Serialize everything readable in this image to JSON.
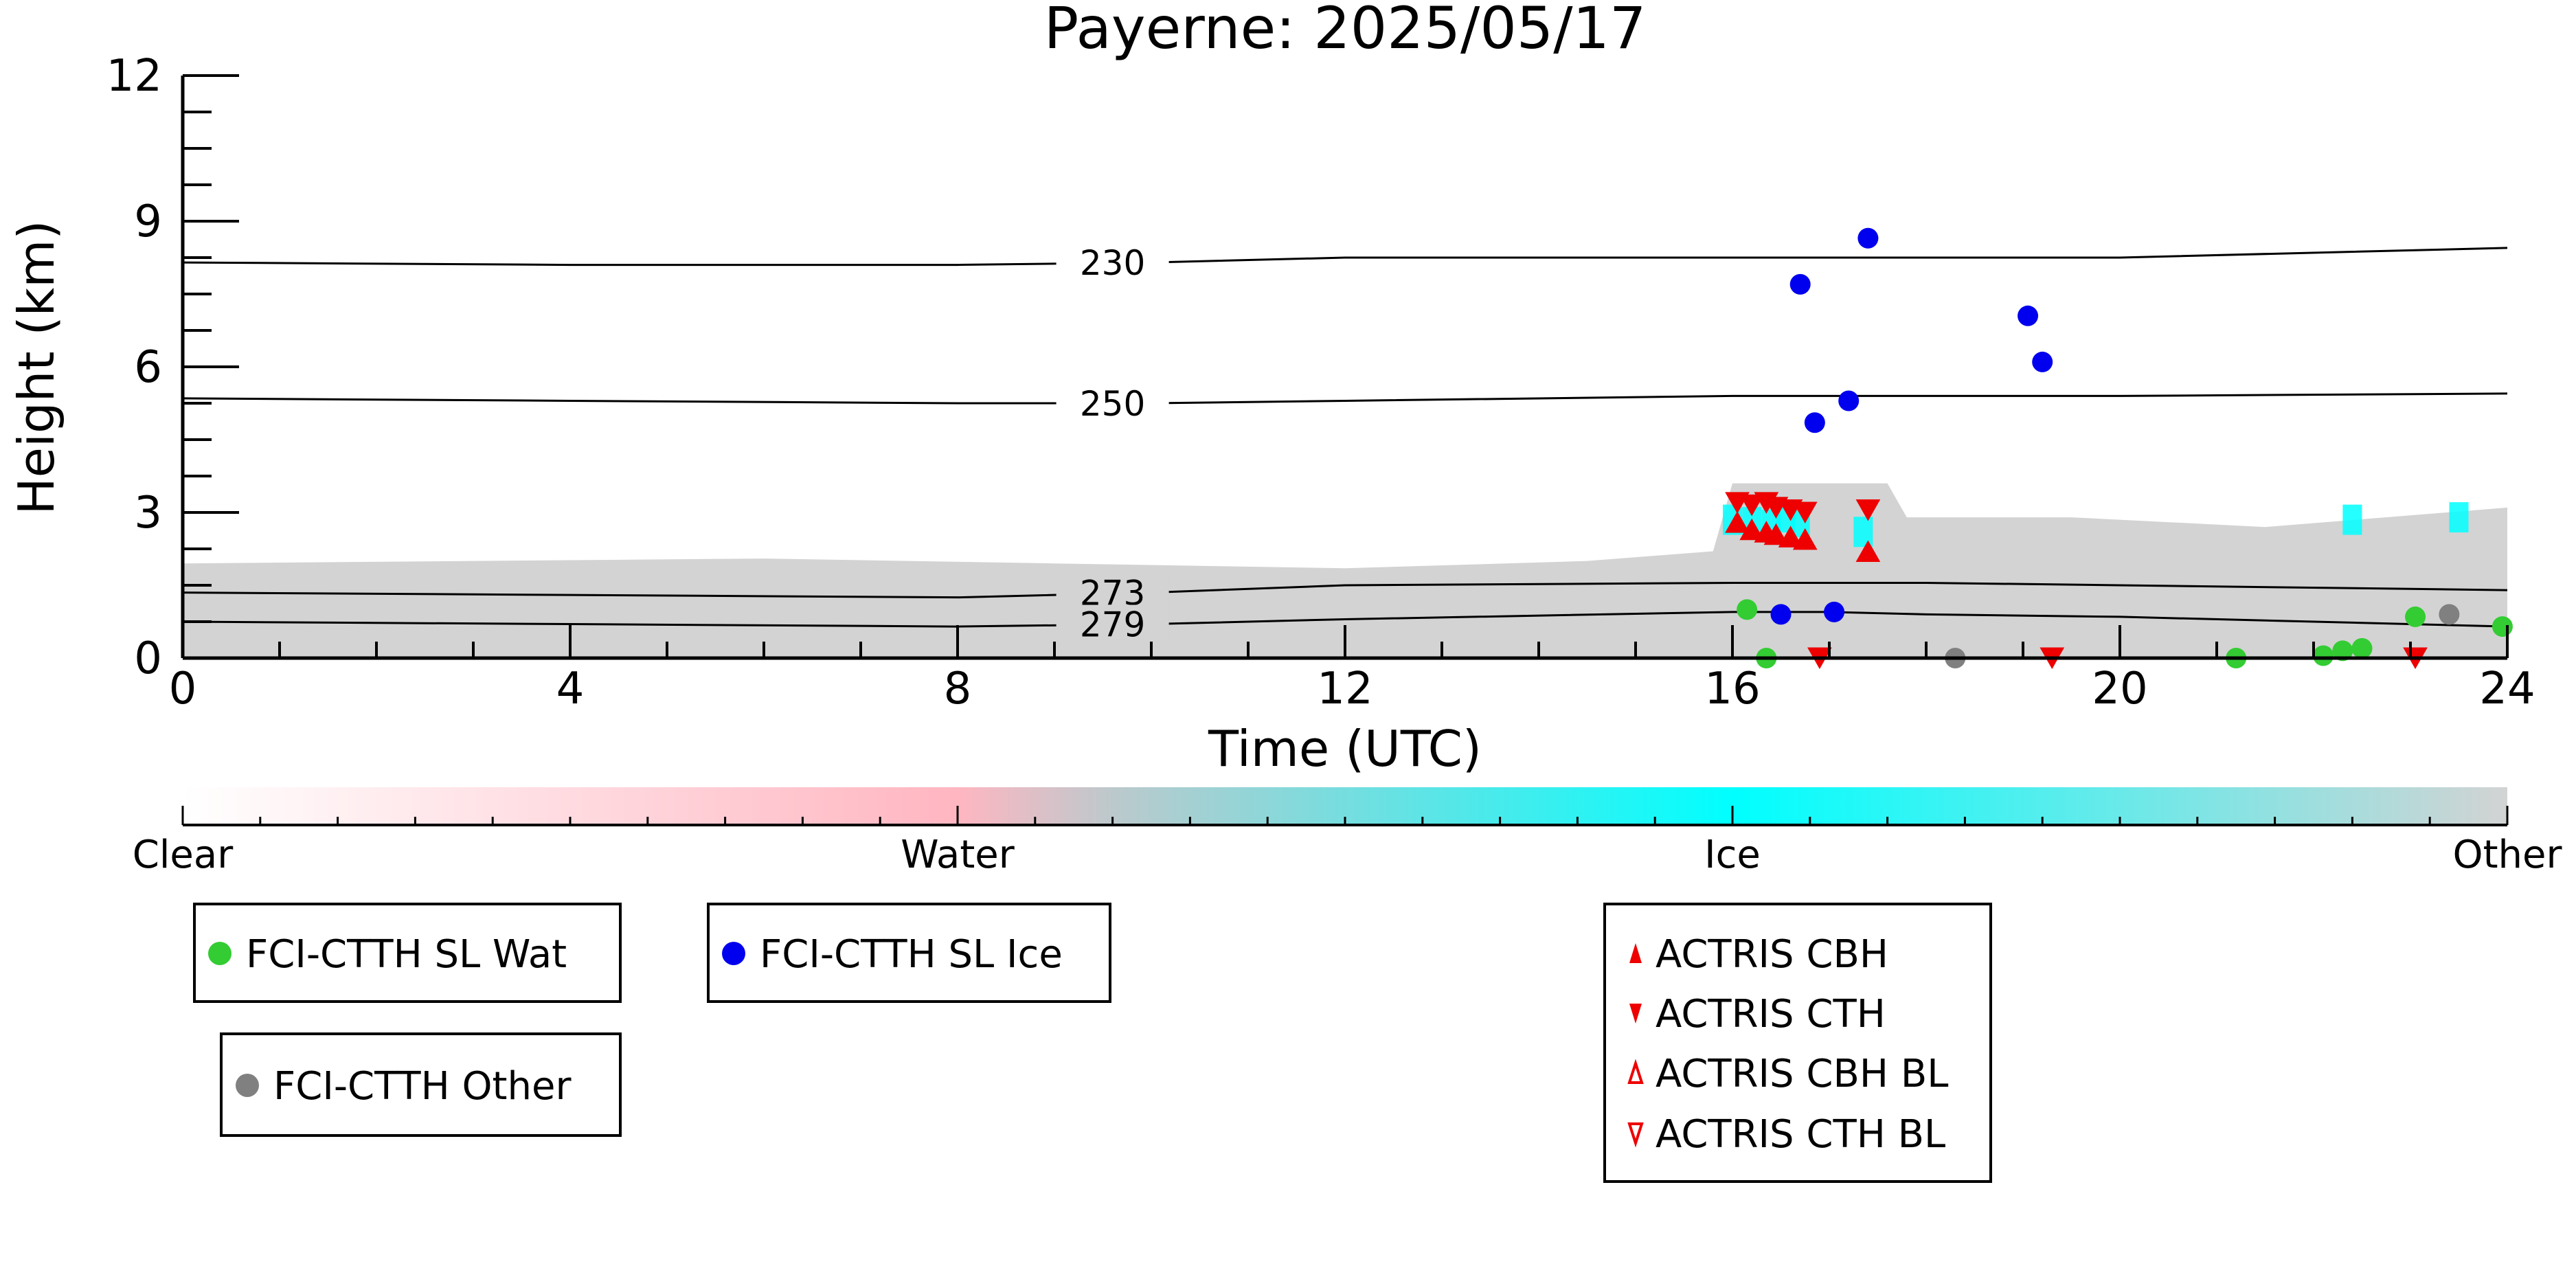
{
  "chart_data": {
    "type": "scatter",
    "title": "Payerne: 2025/05/17",
    "xlabel": "Time (UTC)",
    "ylabel": "Height (km)",
    "xlim": [
      0,
      24
    ],
    "ylim": [
      0,
      12
    ],
    "xticks": [
      0,
      4,
      8,
      12,
      16,
      20,
      24
    ],
    "yticks": [
      0,
      3,
      6,
      9,
      12
    ],
    "background": {
      "description": "cloud-classification heatmap",
      "layers": [
        {
          "class": "Other",
          "color": "#d3d3d3",
          "x": [
            0,
            24
          ],
          "top_km": [
            [
              0,
              1.95
            ],
            [
              3,
              2.0
            ],
            [
              6,
              2.05
            ],
            [
              9,
              1.95
            ],
            [
              12,
              1.85
            ],
            [
              14.5,
              2.0
            ],
            [
              15.8,
              2.2
            ],
            [
              16,
              3.6
            ],
            [
              17.6,
              3.6
            ],
            [
              17.8,
              2.9
            ],
            [
              19.5,
              2.9
            ],
            [
              21.5,
              2.7
            ],
            [
              24,
              3.1
            ]
          ]
        }
      ]
    },
    "contours": [
      {
        "label": "230",
        "x": [
          0,
          4,
          8,
          10,
          12,
          16,
          20,
          24
        ],
        "y": [
          8.15,
          8.1,
          8.1,
          8.15,
          8.25,
          8.25,
          8.25,
          8.45
        ]
      },
      {
        "label": "250",
        "x": [
          0,
          4,
          8,
          10,
          12,
          16,
          20,
          24
        ],
        "y": [
          5.35,
          5.3,
          5.25,
          5.25,
          5.3,
          5.4,
          5.4,
          5.45
        ]
      },
      {
        "label": "273",
        "x": [
          0,
          4,
          8,
          10,
          12,
          16,
          18,
          20,
          24
        ],
        "y": [
          1.35,
          1.3,
          1.25,
          1.35,
          1.5,
          1.55,
          1.55,
          1.5,
          1.4
        ]
      },
      {
        "label": "279",
        "x": [
          0,
          4,
          8,
          10,
          12,
          16,
          17,
          18,
          20,
          24
        ],
        "y": [
          0.75,
          0.7,
          0.65,
          0.7,
          0.8,
          0.95,
          0.95,
          0.9,
          0.85,
          0.65
        ]
      }
    ],
    "series": [
      {
        "name": "FCI-CTTH SL Wat",
        "color": "#33cc33",
        "marker": "circle",
        "x": [
          16.15,
          16.35,
          21.2,
          22.1,
          22.3,
          22.5,
          23.05,
          23.95
        ],
        "y": [
          1.0,
          0.0,
          0.0,
          0.05,
          0.15,
          0.2,
          0.85,
          0.65
        ]
      },
      {
        "name": "FCI-CTTH SL Ice",
        "color": "#0000ee",
        "marker": "circle",
        "x": [
          16.5,
          16.7,
          16.85,
          17.05,
          17.2,
          17.4,
          19.05,
          19.2
        ],
        "y": [
          0.9,
          7.7,
          4.85,
          0.95,
          5.3,
          8.65,
          7.05,
          6.1
        ]
      },
      {
        "name": "FCI-CTTH Other",
        "color": "#808080",
        "marker": "circle",
        "x": [
          18.3,
          23.4
        ],
        "y": [
          0.0,
          0.9
        ]
      },
      {
        "name": "ACTRIS CBH",
        "color": "#ee0000",
        "marker": "triangle-up",
        "x": [
          16.05,
          16.2,
          16.35,
          16.45,
          16.6,
          16.75,
          17.4
        ],
        "y": [
          2.8,
          2.65,
          2.6,
          2.55,
          2.5,
          2.45,
          2.2
        ]
      },
      {
        "name": "ACTRIS CTH",
        "color": "#ee0000",
        "marker": "triangle-down",
        "x": [
          16.05,
          16.2,
          16.35,
          16.45,
          16.6,
          16.75,
          16.9,
          17.4,
          19.3,
          23.05
        ],
        "y": [
          3.2,
          3.15,
          3.2,
          3.1,
          3.05,
          3.0,
          0.0,
          3.05,
          0.0,
          0.0
        ]
      },
      {
        "name": "ACTRIS CBH BL",
        "color": "#ee0000",
        "marker": "triangle-up-open",
        "x": [],
        "y": []
      },
      {
        "name": "ACTRIS CTH BL",
        "color": "#ee0000",
        "marker": "triangle-down-open",
        "x": [],
        "y": []
      }
    ],
    "ice_patches": {
      "color": "#00ffff",
      "x": [
        16.0,
        16.2,
        16.4,
        16.55,
        16.7,
        17.35,
        22.4,
        23.5
      ],
      "y": [
        2.85,
        2.8,
        2.75,
        2.9,
        2.8,
        2.6,
        2.85,
        2.9
      ]
    },
    "colorbar": {
      "labels": [
        "Clear",
        "Water",
        "Ice",
        "Other"
      ],
      "colors": [
        "#ffffff",
        "#ffb6c1",
        "#00ffff",
        "#d3d3d3"
      ]
    }
  },
  "legend": {
    "box1": [
      "FCI-CTTH SL Wat"
    ],
    "box2": [
      "FCI-CTTH SL Ice"
    ],
    "box3": [
      "FCI-CTTH Other"
    ],
    "box4": [
      "ACTRIS CBH",
      "ACTRIS CTH",
      "ACTRIS CBH BL",
      "ACTRIS CTH BL"
    ]
  }
}
